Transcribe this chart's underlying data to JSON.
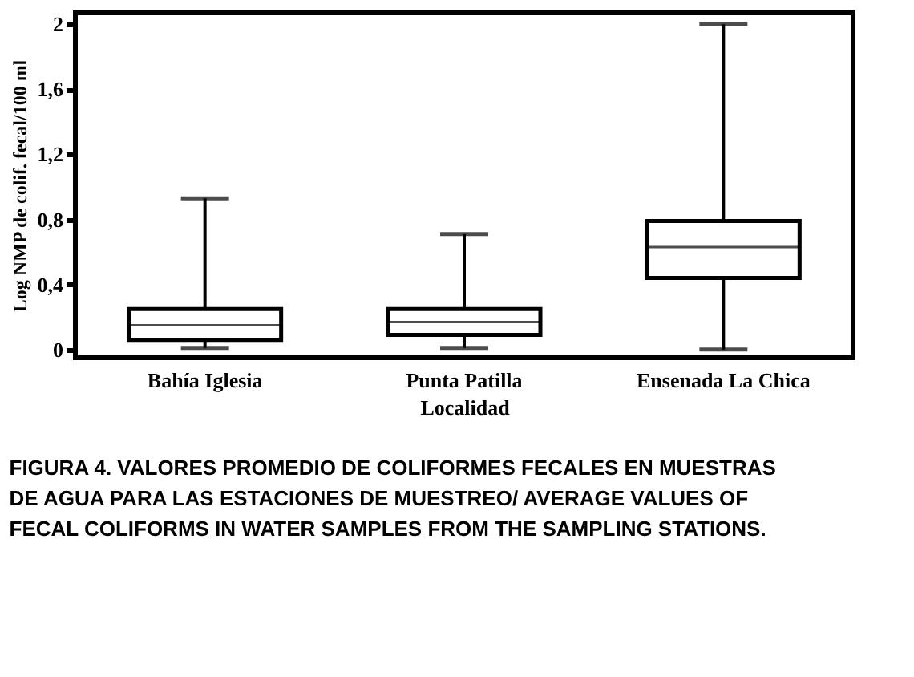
{
  "chart_data": {
    "type": "box",
    "categories": [
      "Bahía Iglesia",
      "Punta Patilla",
      "Ensenada La Chica"
    ],
    "boxes": [
      {
        "low": 0.01,
        "q1": 0.06,
        "median": 0.15,
        "q3": 0.25,
        "high": 0.93
      },
      {
        "low": 0.01,
        "q1": 0.09,
        "median": 0.17,
        "q3": 0.25,
        "high": 0.71
      },
      {
        "low": 0.0,
        "q1": 0.44,
        "median": 0.63,
        "q3": 0.79,
        "high": 2.0
      }
    ],
    "xlabel": "Localidad",
    "ylabel": "Log NMP de colif. fecal/100 ml",
    "ylim": [
      -0.05,
      2.07
    ],
    "yticks": [
      0,
      {
        "value": 0.4,
        "label": "0,4"
      },
      {
        "value": 0.8,
        "label": "0,8"
      },
      {
        "value": 1.2,
        "label": "1,2"
      },
      {
        "value": 1.6,
        "label": "1,6"
      },
      2
    ],
    "color": "#ffffff",
    "grid": false,
    "annotations": [
      "FIGURA 4. VALORES PROMEDIO DE COLIFORMES FECALES EN MUESTRAS DE AGUA PARA LAS ESTACIONES DE MUESTREO/ AVERAGE VALUES OF FECAL COLIFORMS IN WATER SAMPLES FROM THE SAMPLING STATIONS."
    ]
  }
}
